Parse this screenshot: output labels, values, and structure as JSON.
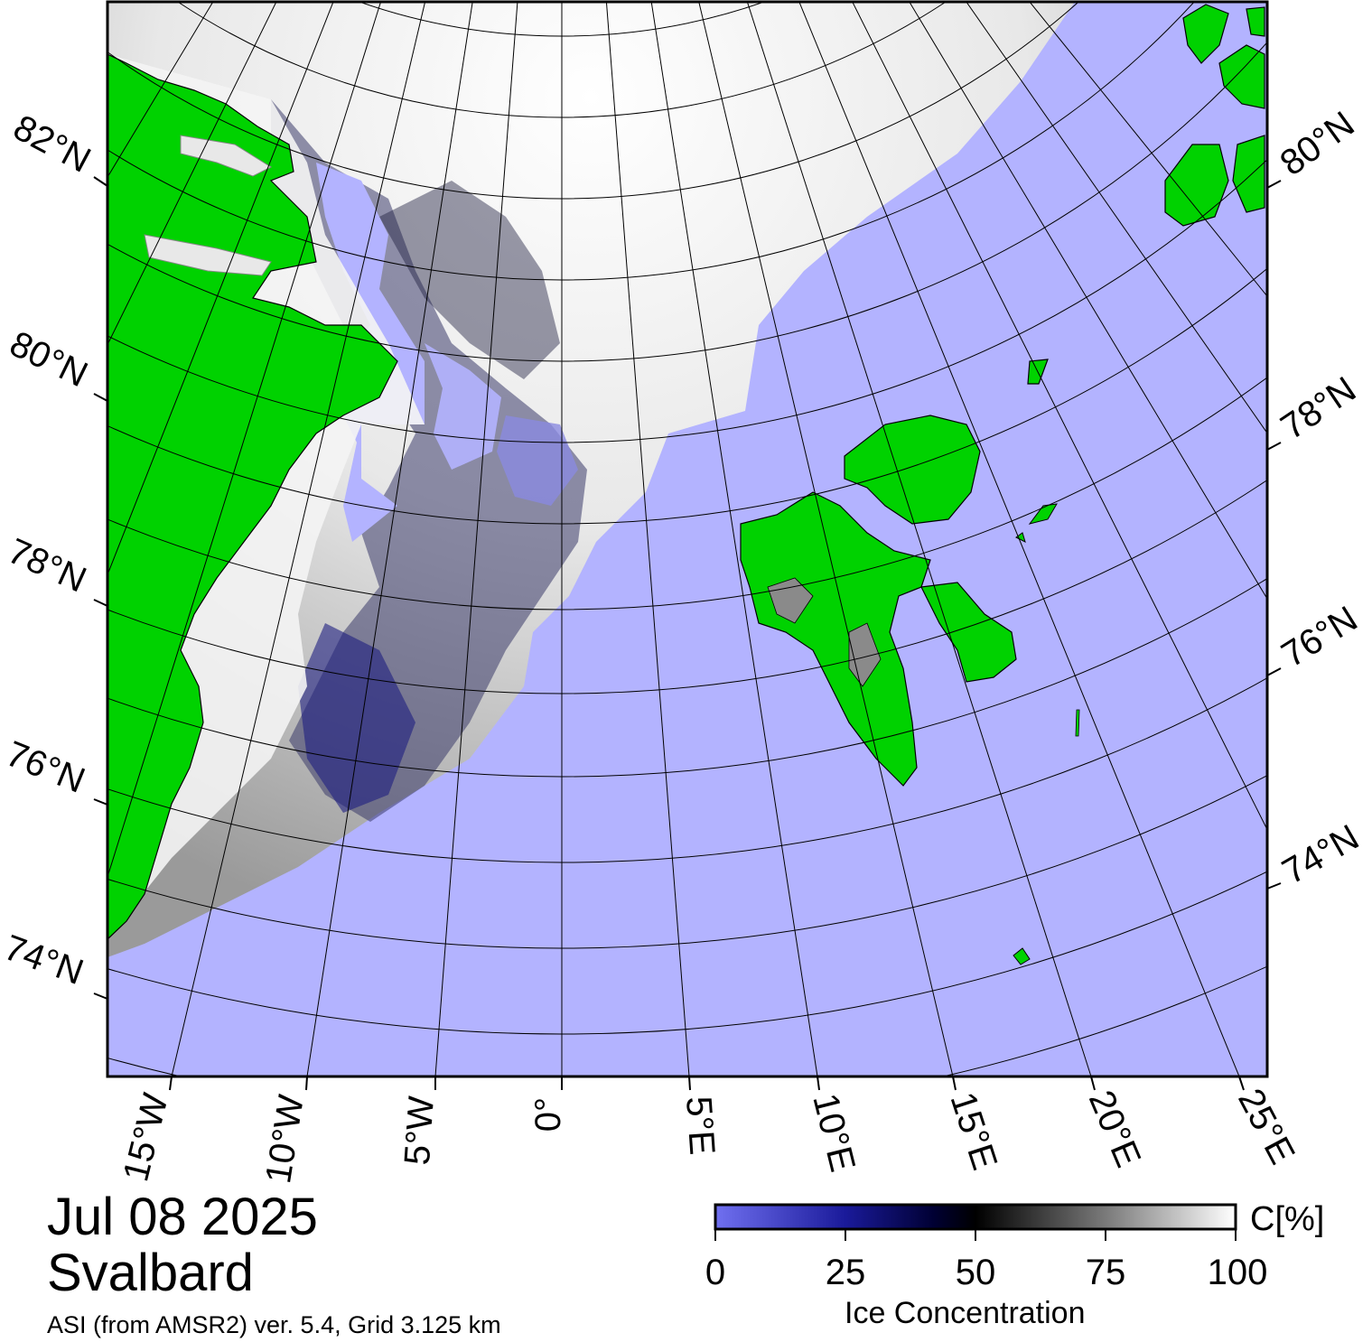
{
  "header": {
    "date": "Jul 08 2025",
    "region": "Svalbard",
    "product": "ASI (from AMSR2) ver. 5.4,  Grid 3.125 km"
  },
  "map": {
    "projection": "polar stereographic (north)",
    "latitude_labels_left": [
      "82°N",
      "80°N",
      "78°N",
      "76°N",
      "74°N"
    ],
    "latitude_labels_right": [
      "80°N",
      "78°N",
      "76°N",
      "74°N"
    ],
    "longitude_labels": [
      "15°W",
      "10°W",
      "5°W",
      "0°",
      "5°E",
      "10°E",
      "15°E",
      "20°E",
      "25°E"
    ],
    "colors": {
      "open_water": "#b3b3ff",
      "land": "#00d200",
      "ice_low": "#7070f0",
      "ice_mid": "#000050",
      "ice_high": "#ffffff",
      "grid": "#000000"
    },
    "features": [
      "greenland-coast",
      "svalbard",
      "franz-josef-land",
      "kvitoya",
      "bjornoya",
      "ice-edge"
    ]
  },
  "colorbar": {
    "title": "Ice Concentration",
    "unit": "C[%]",
    "range": [
      0,
      100
    ],
    "ticks": [
      "0",
      "25",
      "50",
      "75",
      "100"
    ]
  }
}
